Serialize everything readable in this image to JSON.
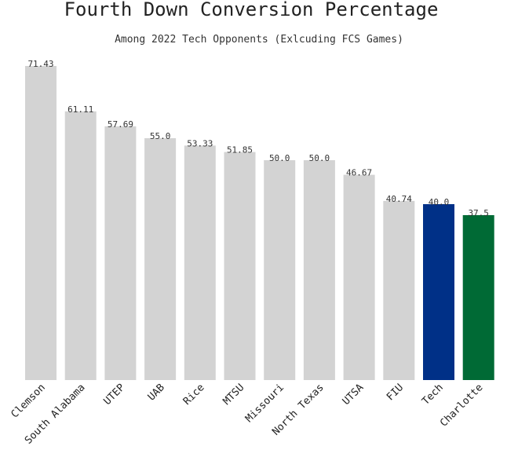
{
  "chart_data": {
    "type": "bar",
    "title": "Fourth Down Conversion Percentage",
    "subtitle": "Among 2022 Tech Opponents (Exlcuding FCS Games)",
    "xlabel": "",
    "ylabel": "",
    "ylim": [
      0,
      75
    ],
    "grid": false,
    "categories": [
      "Clemson",
      "South Alabama",
      "UTEP",
      "UAB",
      "Rice",
      "MTSU",
      "Missouri",
      "North Texas",
      "UTSA",
      "FIU",
      "Tech",
      "Charlotte"
    ],
    "values": [
      71.43,
      61.11,
      57.69,
      55.0,
      53.33,
      51.85,
      50.0,
      50.0,
      46.67,
      40.74,
      40.0,
      37.5
    ],
    "value_labels": [
      "71.43",
      "61.11",
      "57.69",
      "55.0",
      "53.33",
      "51.85",
      "50.0",
      "50.0",
      "46.67",
      "40.74",
      "40.0",
      "37.5"
    ],
    "colors": [
      "#d3d3d3",
      "#d3d3d3",
      "#d3d3d3",
      "#d3d3d3",
      "#d3d3d3",
      "#d3d3d3",
      "#d3d3d3",
      "#d3d3d3",
      "#d3d3d3",
      "#d3d3d3",
      "#003087",
      "#006a35"
    ]
  }
}
